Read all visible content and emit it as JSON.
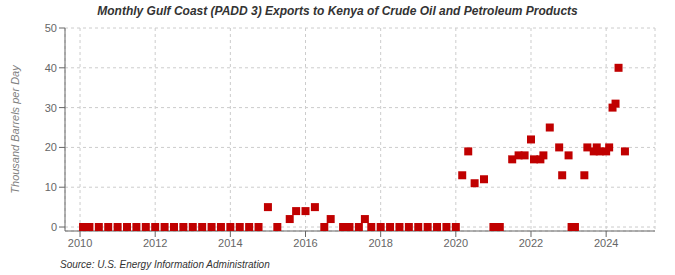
{
  "chart_data": {
    "type": "scatter",
    "title": "Monthly Gulf Coast (PADD 3) Exports to Kenya of Crude Oil and Petroleum Products",
    "y_label": "Thousand Barrels per Day",
    "source": "Source: U.S. Energy Information Administration",
    "x": [
      2010.08,
      2010.25,
      2010.5,
      2010.75,
      2011.0,
      2011.25,
      2011.5,
      2011.75,
      2012.0,
      2012.25,
      2012.5,
      2012.75,
      2013.0,
      2013.25,
      2013.5,
      2013.75,
      2014.0,
      2014.25,
      2014.5,
      2014.75,
      2015.0,
      2015.25,
      2015.58,
      2015.75,
      2016.0,
      2016.25,
      2016.5,
      2016.67,
      2017.0,
      2017.17,
      2017.42,
      2017.58,
      2017.75,
      2018.0,
      2018.25,
      2018.5,
      2018.75,
      2019.0,
      2019.25,
      2019.5,
      2019.75,
      2020.0,
      2020.17,
      2020.33,
      2020.5,
      2020.75,
      2021.0,
      2021.17,
      2021.5,
      2021.67,
      2021.83,
      2022.0,
      2022.08,
      2022.25,
      2022.33,
      2022.5,
      2022.75,
      2022.83,
      2023.0,
      2023.08,
      2023.17,
      2023.42,
      2023.5,
      2023.67,
      2023.75,
      2023.83,
      2024.0,
      2024.08,
      2024.17,
      2024.25,
      2024.33,
      2024.5
    ],
    "values": [
      0,
      0,
      0,
      0,
      0,
      0,
      0,
      0,
      0,
      0,
      0,
      0,
      0,
      0,
      0,
      0,
      0,
      0,
      0,
      0,
      5,
      0,
      2,
      4,
      4,
      5,
      0,
      2,
      0,
      0,
      0,
      2,
      0,
      0,
      0,
      0,
      0,
      0,
      0,
      0,
      0,
      0,
      13,
      19,
      11,
      12,
      0,
      0,
      17,
      18,
      18,
      22,
      17,
      17,
      18,
      25,
      20,
      13,
      18,
      0,
      0,
      13,
      20,
      19,
      20,
      19,
      19,
      20,
      30,
      31,
      40,
      19
    ],
    "color": "#c00000",
    "marker": "square",
    "xlim": [
      2009.6,
      2025.3
    ],
    "xticks": [
      2010,
      2012,
      2014,
      2016,
      2018,
      2020,
      2022,
      2024
    ],
    "ylim": [
      -1,
      50
    ],
    "yticks": [
      0,
      10,
      20,
      30,
      40,
      50
    ],
    "grid": true
  }
}
